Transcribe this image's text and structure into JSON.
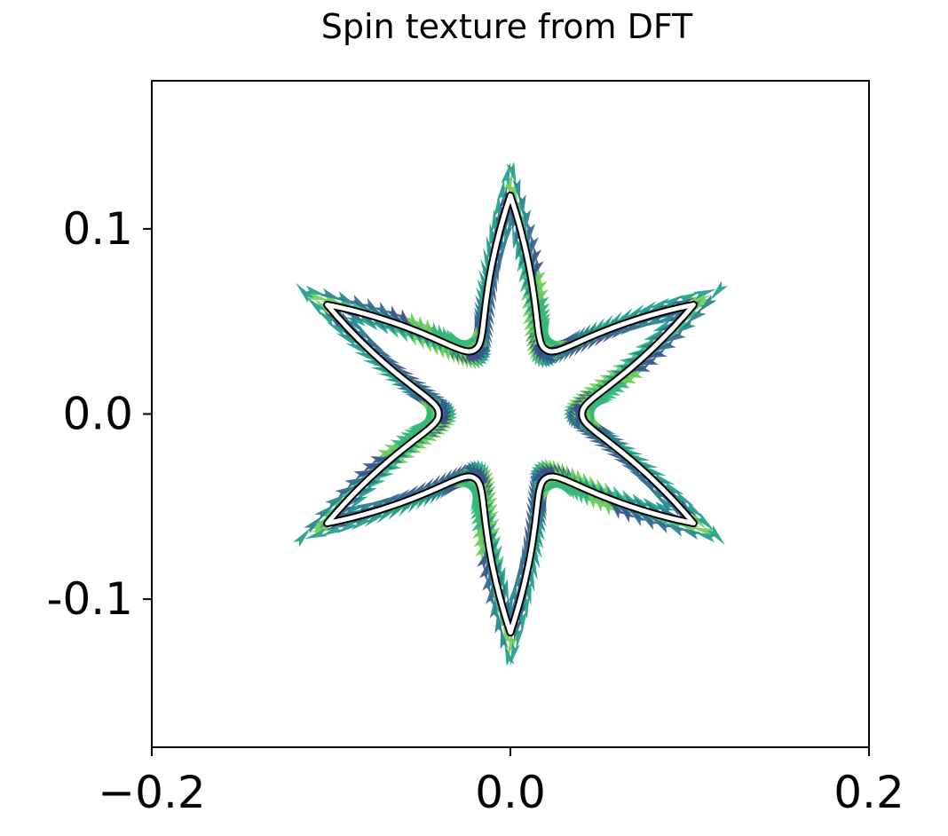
{
  "chart_data": {
    "type": "scatter",
    "title": "Spin texture from DFT",
    "xlabel": "",
    "ylabel": "",
    "xlim": [
      -0.2,
      0.2
    ],
    "ylim": [
      -0.18,
      0.18
    ],
    "xticks": [
      {
        "value": -0.2,
        "label": "−0.2"
      },
      {
        "value": 0.0,
        "label": "0.0"
      },
      {
        "value": 0.2,
        "label": "0.2"
      }
    ],
    "yticks": [
      {
        "value": 0.1,
        "label": "0.1"
      },
      {
        "value": 0.0,
        "label": "0.0"
      },
      {
        "value": -0.1,
        "label": "-0.1"
      }
    ],
    "grid": false,
    "contour": {
      "shape": "six-pointed star, tips along ±90°, ±30°, ±150°",
      "outer_radius": 0.118,
      "inner_radius": 0.04
    },
    "arrow_field": {
      "description": "in-plane spin arrows distributed along the Fermi contour",
      "colormap": "viridis",
      "colors": [
        "#3b528b",
        "#31688e",
        "#26828e",
        "#1f9e89",
        "#35b779",
        "#6ece58"
      ]
    }
  }
}
